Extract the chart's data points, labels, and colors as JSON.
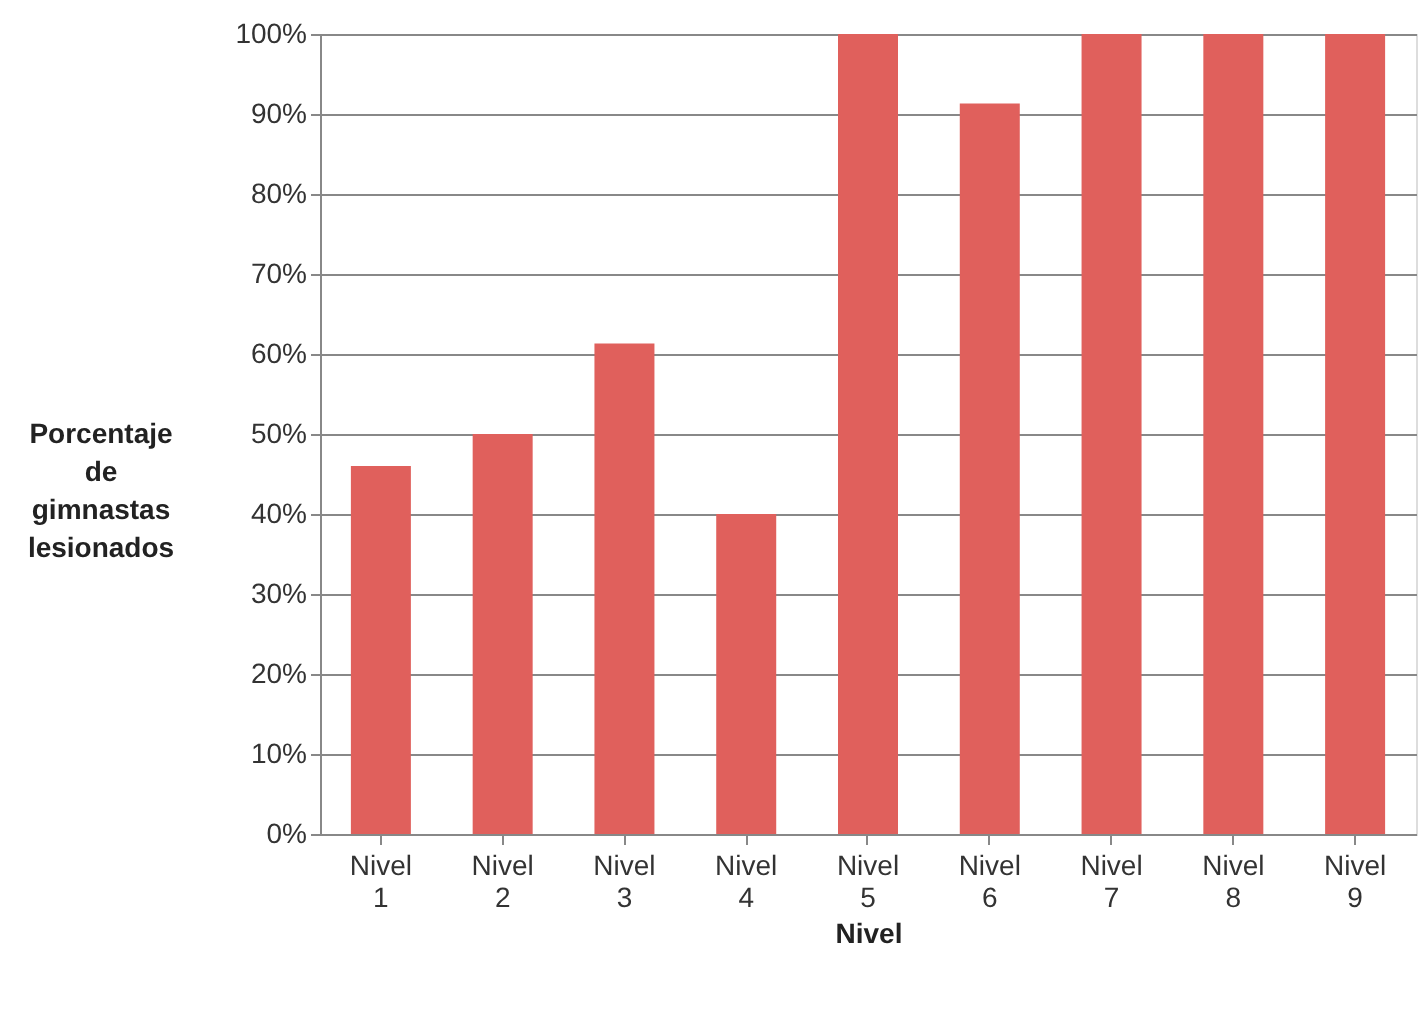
{
  "chart_data": {
    "type": "bar",
    "xlabel": "Nivel",
    "ylabel": "Porcentaje de gimnastas lesionados",
    "categories": [
      "Nivel 1",
      "Nivel 2",
      "Nivel 3",
      "Nivel 4",
      "Nivel 5",
      "Nivel 6",
      "Nivel 7",
      "Nivel 8",
      "Nivel 9"
    ],
    "values": [
      46,
      50,
      61.3,
      40,
      100,
      91.3,
      100,
      100,
      100
    ],
    "color": "#e0605c",
    "ylim": [
      0,
      100
    ],
    "yticks": [
      {
        "value": 0,
        "label": "0%"
      },
      {
        "value": 10,
        "label": "10%"
      },
      {
        "value": 20,
        "label": "20%"
      },
      {
        "value": 30,
        "label": "30%"
      },
      {
        "value": 40,
        "label": "40%"
      },
      {
        "value": 50,
        "label": "50%"
      },
      {
        "value": 60,
        "label": "60%"
      },
      {
        "value": 70,
        "label": "70%"
      },
      {
        "value": 80,
        "label": "80%"
      },
      {
        "value": 90,
        "label": "90%"
      },
      {
        "value": 100,
        "label": "100%"
      }
    ],
    "grid": "y"
  }
}
